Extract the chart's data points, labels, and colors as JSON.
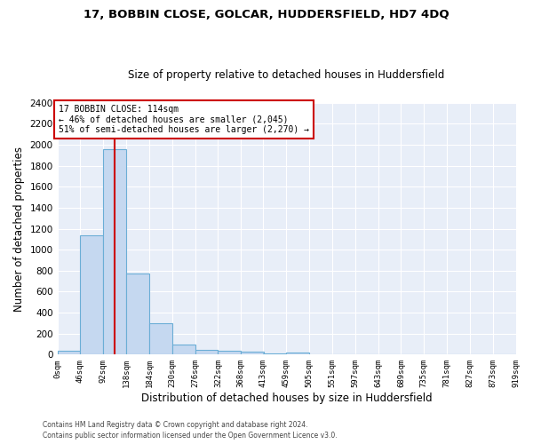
{
  "title": "17, BOBBIN CLOSE, GOLCAR, HUDDERSFIELD, HD7 4DQ",
  "subtitle": "Size of property relative to detached houses in Huddersfield",
  "xlabel": "Distribution of detached houses by size in Huddersfield",
  "ylabel": "Number of detached properties",
  "bar_color": "#c5d8f0",
  "bar_edge_color": "#6baed6",
  "background_color": "#e8eef8",
  "grid_color": "#ffffff",
  "annotation_text": "17 BOBBIN CLOSE: 114sqm\n← 46% of detached houses are smaller (2,045)\n51% of semi-detached houses are larger (2,270) →",
  "annotation_box_color": "#cc0000",
  "vline_x": 114,
  "vline_color": "#cc0000",
  "bin_edges": [
    0,
    46,
    92,
    138,
    184,
    230,
    276,
    322,
    368,
    413,
    459,
    505,
    551,
    597,
    643,
    689,
    735,
    781,
    827,
    873,
    919
  ],
  "bar_heights": [
    35,
    1140,
    1960,
    770,
    300,
    100,
    45,
    38,
    25,
    15,
    20,
    0,
    0,
    0,
    0,
    0,
    0,
    0,
    0,
    0
  ],
  "ylim": [
    0,
    2400
  ],
  "yticks": [
    0,
    200,
    400,
    600,
    800,
    1000,
    1200,
    1400,
    1600,
    1800,
    2000,
    2200,
    2400
  ],
  "tick_labels": [
    "0sqm",
    "46sqm",
    "92sqm",
    "138sqm",
    "184sqm",
    "230sqm",
    "276sqm",
    "322sqm",
    "368sqm",
    "413sqm",
    "459sqm",
    "505sqm",
    "551sqm",
    "597sqm",
    "643sqm",
    "689sqm",
    "735sqm",
    "781sqm",
    "827sqm",
    "873sqm",
    "919sqm"
  ],
  "footer_line1": "Contains HM Land Registry data © Crown copyright and database right 2024.",
  "footer_line2": "Contains public sector information licensed under the Open Government Licence v3.0.",
  "fig_width": 6.0,
  "fig_height": 5.0,
  "dpi": 100
}
